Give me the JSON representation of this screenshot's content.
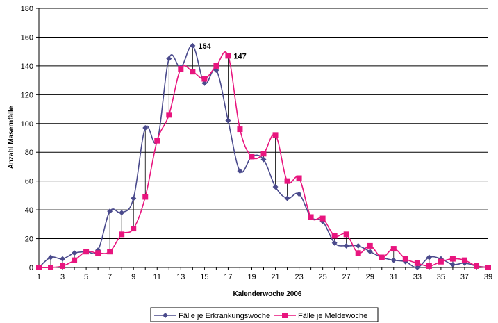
{
  "chart_data": {
    "type": "line",
    "xlabel": "Kalenderwoche 2006",
    "ylabel": "Anzahl Masernfälle",
    "xlim": [
      1,
      39
    ],
    "ylim": [
      0,
      180
    ],
    "x_ticks": [
      1,
      3,
      5,
      7,
      9,
      11,
      13,
      15,
      17,
      19,
      21,
      23,
      25,
      27,
      29,
      31,
      33,
      35,
      37,
      39
    ],
    "y_ticks": [
      0,
      20,
      40,
      60,
      80,
      100,
      120,
      140,
      160,
      180
    ],
    "grid": true,
    "legend_position": "bottom",
    "x": [
      1,
      2,
      3,
      4,
      5,
      6,
      7,
      8,
      9,
      10,
      11,
      12,
      13,
      14,
      15,
      16,
      17,
      18,
      19,
      20,
      21,
      22,
      23,
      24,
      25,
      26,
      27,
      28,
      29,
      30,
      31,
      32,
      33,
      34,
      35,
      36,
      37,
      38,
      39
    ],
    "series": [
      {
        "name": "Fälle je Erkrankungswoche",
        "color": "#4a4a8c",
        "marker": "diamond",
        "values": [
          0,
          7,
          6,
          10,
          11,
          12,
          39,
          38,
          48,
          97,
          88,
          145,
          139,
          154,
          128,
          137,
          102,
          67,
          77,
          75,
          56,
          48,
          51,
          35,
          32,
          17,
          15,
          15,
          11,
          7,
          5,
          4,
          0,
          7,
          6,
          2,
          3,
          1,
          0
        ]
      },
      {
        "name": "Fälle je Meldewoche",
        "color": "#e8157e",
        "marker": "square",
        "values": [
          0,
          0,
          1,
          5,
          11,
          10,
          11,
          23,
          27,
          49,
          88,
          106,
          138,
          136,
          131,
          140,
          147,
          96,
          77,
          79,
          92,
          60,
          62,
          35,
          34,
          22,
          23,
          10,
          15,
          7,
          13,
          6,
          3,
          1,
          4,
          6,
          5,
          1,
          0
        ]
      }
    ],
    "annotations": [
      {
        "text": "154",
        "x": 14,
        "y": 154
      },
      {
        "text": "147",
        "x": 17,
        "y": 147
      }
    ]
  }
}
